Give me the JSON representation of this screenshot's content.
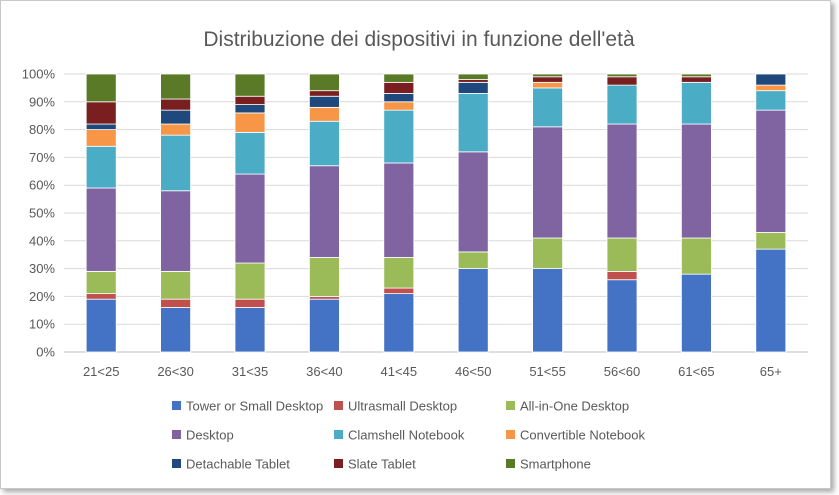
{
  "chart_data": {
    "type": "bar",
    "stacked": "percent",
    "title": "Distribuzione dei dispositivi in funzione dell'età",
    "xlabel": "",
    "ylabel": "",
    "ylim": [
      0,
      100
    ],
    "y_ticks": [
      "0%",
      "10%",
      "20%",
      "30%",
      "40%",
      "50%",
      "60%",
      "70%",
      "80%",
      "90%",
      "100%"
    ],
    "grid": true,
    "legend_position": "bottom",
    "categories": [
      "21<25",
      "26<30",
      "31<35",
      "36<40",
      "41<45",
      "46<50",
      "51<55",
      "56<60",
      "61<65",
      "65+"
    ],
    "series": [
      {
        "name": "Tower or Small Desktop",
        "color": "#4472c4",
        "values": [
          19,
          16,
          16,
          19,
          21,
          30,
          30,
          26,
          28,
          37
        ]
      },
      {
        "name": "Ultrasmall Desktop",
        "color": "#c0504d",
        "values": [
          2,
          3,
          3,
          1,
          2,
          0,
          0,
          3,
          0,
          0
        ]
      },
      {
        "name": "All-in-One Desktop",
        "color": "#9bbb59",
        "values": [
          8,
          10,
          13,
          14,
          11,
          6,
          11,
          12,
          13,
          6
        ]
      },
      {
        "name": "Desktop",
        "color": "#8064a2",
        "values": [
          30,
          29,
          32,
          33,
          34,
          36,
          40,
          41,
          41,
          44
        ]
      },
      {
        "name": "Clamshell Notebook",
        "color": "#4bacc6",
        "values": [
          15,
          20,
          15,
          16,
          19,
          21,
          14,
          14,
          15,
          7
        ]
      },
      {
        "name": "Convertible Notebook",
        "color": "#f79646",
        "values": [
          6,
          4,
          7,
          5,
          3,
          0,
          2,
          0,
          0,
          2
        ]
      },
      {
        "name": "Detachable Tablet",
        "color": "#1f497d",
        "values": [
          2,
          5,
          3,
          4,
          3,
          4,
          0,
          0,
          0,
          4
        ]
      },
      {
        "name": "Slate Tablet",
        "color": "#7a1f1f",
        "values": [
          8,
          4,
          3,
          2,
          4,
          1,
          2,
          3,
          2,
          0
        ]
      },
      {
        "name": "Smartphone",
        "color": "#5a7a28",
        "values": [
          10,
          9,
          8,
          6,
          3,
          2,
          1,
          1,
          1,
          0
        ]
      }
    ]
  }
}
